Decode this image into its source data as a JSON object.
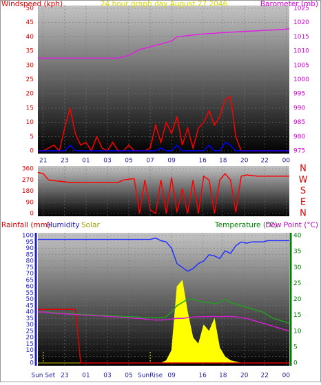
{
  "chart_data": [
    {
      "type": "line",
      "title": "24 hour graph day   August 27 2046",
      "title_color": "#d8d800",
      "headers": [
        {
          "text": "Windspeed (kph)",
          "color": "#e00000"
        },
        {
          "text": "Barometer (mb)",
          "color": "#d000d0"
        }
      ],
      "x": [
        0,
        0.5,
        1,
        1.5,
        2,
        2.5,
        3,
        3.5,
        4,
        4.5,
        5,
        5.5,
        6,
        6.5,
        7,
        7.5,
        8,
        8.5,
        9,
        9.5,
        10,
        10.5,
        11,
        11.5,
        12,
        12.5,
        13,
        13.5,
        14,
        14.5,
        15,
        15.5,
        16,
        16.5,
        17,
        17.5,
        18,
        18.5,
        19,
        19.5,
        20,
        20.5,
        21,
        21.5,
        22,
        22.5,
        23,
        23.5
      ],
      "xlim": [
        0,
        23.5
      ],
      "xticks": [
        {
          "value": 0.5,
          "label": "21"
        },
        {
          "value": 2.5,
          "label": "23"
        },
        {
          "value": 4.5,
          "label": "01"
        },
        {
          "value": 6.5,
          "label": "03"
        },
        {
          "value": 8.5,
          "label": "05"
        },
        {
          "value": 10.5,
          "label": "07"
        },
        {
          "value": 12.5,
          "label": "09"
        },
        {
          "value": 15.4,
          "label": "16"
        },
        {
          "value": 17.3,
          "label": "18"
        },
        {
          "value": 19.3,
          "label": "20"
        },
        {
          "value": 21.2,
          "label": "22"
        },
        {
          "value": 23.2,
          "label": "00"
        }
      ],
      "ylim": [
        0,
        50
      ],
      "yticks": [
        0,
        5,
        10,
        15,
        20,
        25,
        30,
        35,
        40,
        45,
        50
      ],
      "ytick_color": "#e00000",
      "y2lim": [
        975,
        1025
      ],
      "y2ticks": [
        975,
        980,
        985,
        990,
        995,
        1000,
        1005,
        1010,
        1015,
        1020,
        1025
      ],
      "y2tick_color": "#d000d0",
      "grid": true,
      "series": [
        {
          "color": "#ff0000",
          "values": [
            0,
            0,
            1,
            2,
            0,
            8,
            15,
            6,
            2,
            3,
            0,
            5,
            1,
            0,
            3,
            0,
            0,
            2,
            0,
            0,
            0,
            1,
            9,
            3,
            10,
            6,
            12,
            2,
            8,
            1,
            8,
            10,
            14,
            9,
            12,
            18,
            19,
            5,
            0,
            0,
            0,
            0,
            0,
            0,
            0,
            0,
            0,
            0
          ]
        },
        {
          "color": "#0000ff",
          "values": [
            0,
            0,
            0,
            0,
            0,
            0,
            2,
            0,
            0,
            0,
            0,
            0,
            0,
            0,
            0,
            0,
            0,
            0,
            0,
            0,
            0,
            0,
            0,
            1,
            0,
            0,
            2,
            0,
            0,
            0,
            0,
            0,
            2,
            0,
            0,
            3,
            2,
            0,
            0,
            0,
            0,
            0,
            0,
            0,
            0,
            0,
            0,
            0
          ]
        },
        {
          "color": "#e020e0",
          "axis": "y2",
          "values": [
            1007.5,
            1007.5,
            1007.5,
            1007.5,
            1007.5,
            1007.5,
            1007.5,
            1007.5,
            1007.5,
            1007.5,
            1007.5,
            1007.5,
            1007.5,
            1007.5,
            1007.5,
            1007.5,
            1008,
            1008.5,
            1009.5,
            1010.5,
            1011,
            1011.5,
            1012,
            1012.5,
            1013,
            1013.5,
            1015,
            1015.2,
            1015.4,
            1015.6,
            1015.8,
            1016,
            1016.1,
            1016.2,
            1016.4,
            1016.5,
            1016.6,
            1016.7,
            1016.8,
            1016.9,
            1017,
            1017.1,
            1017.2,
            1017.3,
            1017.4,
            1017.5,
            1017.6,
            1017.8
          ]
        }
      ]
    },
    {
      "type": "line",
      "x": [
        0,
        0.5,
        1,
        1.5,
        2,
        2.5,
        3,
        3.5,
        4,
        4.5,
        5,
        5.5,
        6,
        6.5,
        7,
        7.5,
        8,
        8.5,
        9,
        9.5,
        10,
        10.5,
        11,
        11.5,
        12,
        12.5,
        13,
        13.5,
        14,
        14.5,
        15,
        15.5,
        16,
        16.5,
        17,
        17.5,
        18,
        18.5,
        19,
        19.5,
        20,
        20.5,
        21,
        21.5,
        22,
        22.5,
        23,
        23.5
      ],
      "xlim": [
        0,
        23.5
      ],
      "xticks": [
        0.5,
        2.5,
        4.5,
        6.5,
        8.5,
        10.5,
        12.5,
        15.4,
        17.3,
        19.3,
        21.2,
        23.2
      ],
      "ylim": [
        0,
        360
      ],
      "yticks": [
        0,
        90,
        180,
        270,
        360
      ],
      "ytick_color": "#e00000",
      "side_labels": [
        "N",
        "W",
        "S",
        "E",
        "N"
      ],
      "side_color": "#e00000",
      "grid": true,
      "series": [
        {
          "color": "#ff0000",
          "values": [
            330,
            320,
            270,
            265,
            260,
            255,
            250,
            250,
            250,
            250,
            250,
            250,
            250,
            250,
            250,
            250,
            270,
            275,
            280,
            0,
            270,
            30,
            0,
            270,
            0,
            290,
            10,
            200,
            0,
            270,
            0,
            300,
            270,
            0,
            270,
            320,
            270,
            10,
            300,
            310,
            305,
            300,
            300,
            300,
            300,
            300,
            300,
            300
          ]
        }
      ]
    },
    {
      "type": "line",
      "headers": [
        {
          "text": "Rainfall (mm)",
          "color": "#e00000"
        },
        {
          "text": "Humidity",
          "color": "#2020c0"
        },
        {
          "text": "Solar",
          "color": "#a0a000"
        },
        {
          "text": "Temperature (°C)",
          "color": "#008000"
        },
        {
          "text": "Dew Point (°C)",
          "color": "#c000c0"
        }
      ],
      "x": [
        0,
        0.5,
        1,
        1.5,
        2,
        2.5,
        3,
        3.5,
        4,
        4.5,
        5,
        5.5,
        6,
        6.5,
        7,
        7.5,
        8,
        8.5,
        9,
        9.5,
        10,
        10.5,
        11,
        11.5,
        12,
        12.5,
        13,
        13.5,
        14,
        14.5,
        15,
        15.5,
        16,
        16.5,
        17,
        17.5,
        18,
        18.5,
        19,
        19.5,
        20,
        20.5,
        21,
        21.5,
        22,
        22.5,
        23,
        23.5
      ],
      "xlim": [
        0,
        23.5
      ],
      "xticks": [
        {
          "value": 2.5,
          "label": "23"
        },
        {
          "value": 4.5,
          "label": "01"
        },
        {
          "value": 6.5,
          "label": "03"
        },
        {
          "value": 8.5,
          "label": "05"
        },
        {
          "value": 12.5,
          "label": "09"
        },
        {
          "value": 15.4,
          "label": "16"
        },
        {
          "value": 17.3,
          "label": "18"
        },
        {
          "value": 19.3,
          "label": "20"
        },
        {
          "value": 21.2,
          "label": "22"
        },
        {
          "value": 23.2,
          "label": "00"
        }
      ],
      "annotations": [
        {
          "text": "Sun Set",
          "x": 0.5
        },
        {
          "text": "SunRise",
          "x": 10.5
        }
      ],
      "ylim": [
        0,
        100
      ],
      "yticks": [
        0,
        5,
        10,
        15,
        20,
        25,
        30,
        35,
        40,
        45,
        50,
        55,
        60,
        65,
        70,
        75,
        80,
        85,
        90,
        95,
        100
      ],
      "ytick_color": "#2020c0",
      "y2lim": [
        0,
        40
      ],
      "y2ticks": [
        0,
        5,
        10,
        15,
        20,
        25,
        30,
        35,
        40
      ],
      "y2tick_color": "#008000",
      "grid": true,
      "series": [
        {
          "color": "#ffff00",
          "fill": true,
          "values": [
            0,
            0,
            0,
            0,
            0,
            0,
            0,
            0,
            0,
            0,
            0,
            0,
            0,
            0,
            0,
            0,
            0,
            0,
            0,
            0,
            0,
            0,
            0,
            0,
            2,
            10,
            60,
            65,
            40,
            20,
            15,
            30,
            25,
            35,
            12,
            5,
            2,
            1,
            0,
            0,
            0,
            0,
            0,
            0,
            0,
            0,
            0,
            0
          ]
        },
        {
          "color": "#e00000",
          "values": [
            42,
            42,
            42,
            42,
            42,
            42,
            42,
            42,
            0,
            0,
            0,
            0,
            0,
            0,
            0,
            0,
            0,
            0,
            0,
            0,
            0,
            0,
            0,
            0,
            0,
            0,
            0,
            0,
            0,
            0,
            0,
            0,
            0,
            0,
            0,
            0,
            0,
            0,
            0,
            0,
            0,
            0,
            0,
            0,
            0,
            0,
            0,
            0
          ]
        },
        {
          "color": "#20a020",
          "axis": "y2",
          "values": [
            16,
            16,
            16,
            15.8,
            15.6,
            15.5,
            15.5,
            15.4,
            15.3,
            15.2,
            15.2,
            15,
            15,
            15,
            14.8,
            14.8,
            14.6,
            14.5,
            14.5,
            14.4,
            14.3,
            14.2,
            14.2,
            14.2,
            14.5,
            16,
            18,
            19,
            20,
            20,
            19.5,
            19,
            19,
            18.5,
            19,
            20,
            19,
            18.5,
            18,
            17.5,
            17,
            16.5,
            16,
            15,
            14,
            13.5,
            13,
            12.5
          ]
        },
        {
          "color": "#d020d0",
          "axis": "y2",
          "values": [
            16,
            16,
            15.8,
            15.6,
            15.5,
            15.4,
            15.3,
            15.2,
            15.1,
            15,
            15,
            14.8,
            14.8,
            14.6,
            14.5,
            14.4,
            14.3,
            14.2,
            14,
            14,
            13.8,
            13.6,
            13.5,
            13.5,
            13.6,
            13.8,
            14,
            14,
            14.2,
            14.4,
            14.5,
            14.5,
            14.6,
            14.6,
            14.5,
            14.6,
            14.6,
            14.5,
            14.2,
            14,
            13.5,
            13,
            12.5,
            12,
            11.5,
            11,
            10.5,
            10
          ]
        },
        {
          "color": "#2030ff",
          "values": [
            97,
            97,
            97,
            97,
            97,
            97,
            97,
            97,
            97,
            97,
            97,
            97,
            97,
            97,
            97,
            97,
            97,
            97,
            97,
            97,
            97,
            97,
            98,
            96,
            95,
            90,
            78,
            75,
            72,
            74,
            78,
            80,
            85,
            84,
            82,
            88,
            86,
            92,
            95,
            94,
            95,
            95,
            95,
            96,
            96,
            96,
            96,
            96
          ]
        }
      ]
    }
  ]
}
